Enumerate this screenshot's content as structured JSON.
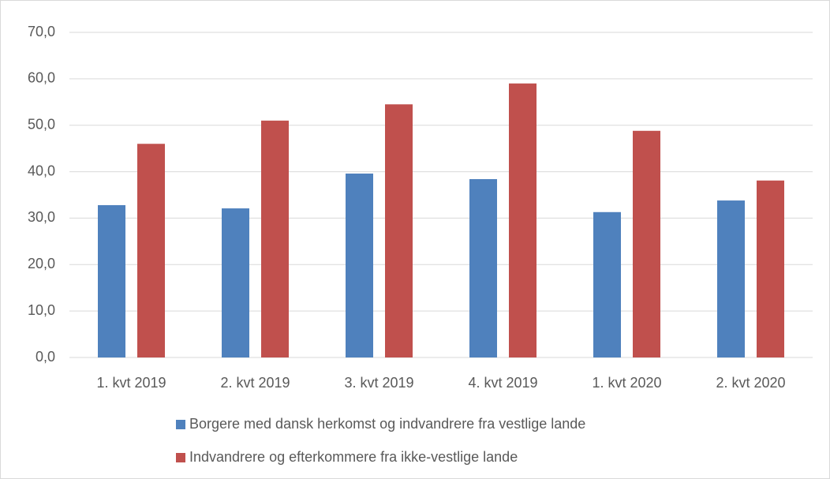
{
  "chart_data": {
    "type": "bar",
    "categories": [
      "1. kvt 2019",
      "2. kvt 2019",
      "3. kvt 2019",
      "4. kvt 2019",
      "1. kvt 2020",
      "2. kvt 2020"
    ],
    "series": [
      {
        "name": "Borgere med dansk herkomst og indvandrere fra vestlige lande",
        "color": "#4f81bd",
        "values": [
          32.8,
          32.1,
          39.6,
          38.4,
          31.3,
          33.8
        ]
      },
      {
        "name": "Indvandrere og efterkommere fra ikke-vestlige lande",
        "color": "#c0504d",
        "values": [
          46.0,
          51.0,
          54.5,
          59.0,
          48.8,
          38.1
        ]
      }
    ],
    "ylim": [
      0,
      70
    ],
    "yticks": [
      {
        "value": 0,
        "label": "0,0"
      },
      {
        "value": 10,
        "label": "10,0"
      },
      {
        "value": 20,
        "label": "20,0"
      },
      {
        "value": 30,
        "label": "30,0"
      },
      {
        "value": 40,
        "label": "40,0"
      },
      {
        "value": 50,
        "label": "50,0"
      },
      {
        "value": 60,
        "label": "60,0"
      },
      {
        "value": 70,
        "label": "70,0"
      }
    ],
    "grid": true,
    "legend": "bottom"
  }
}
